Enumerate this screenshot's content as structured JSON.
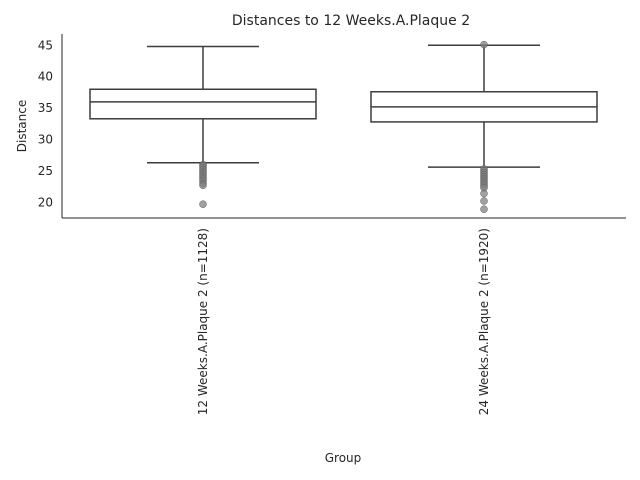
{
  "chart_data": {
    "type": "box",
    "title": "Distances to 12 Weeks.A.Plaque 2",
    "xlabel": "Group",
    "ylabel": "Distance",
    "ylim": [
      17.5,
      46.8
    ],
    "yticks": [
      20,
      25,
      30,
      35,
      40,
      45
    ],
    "grid": false,
    "legend": "none",
    "colors": {
      "box_edge": "#3d3d3d",
      "outlier": "#808080"
    },
    "groups": [
      {
        "label": "12 Weeks.A.Plaque 2 (n=1128)",
        "whisker_low": 26.3,
        "q1": 33.3,
        "median": 36.0,
        "q3": 38.0,
        "whisker_high": 44.8,
        "outliers": [
          26.0,
          25.8,
          25.5,
          25.2,
          24.9,
          24.6,
          24.3,
          24.0,
          23.7,
          23.4,
          23.0,
          22.7,
          19.7
        ]
      },
      {
        "label": "24 Weeks.A.Plaque 2 (n=1920)",
        "whisker_low": 25.6,
        "q1": 32.8,
        "median": 35.2,
        "q3": 37.6,
        "whisker_high": 45.0,
        "outliers": [
          45.1,
          25.3,
          25.0,
          24.7,
          24.4,
          24.1,
          23.8,
          23.5,
          23.2,
          22.9,
          22.6,
          22.3,
          21.4,
          20.2,
          18.9
        ]
      }
    ]
  }
}
